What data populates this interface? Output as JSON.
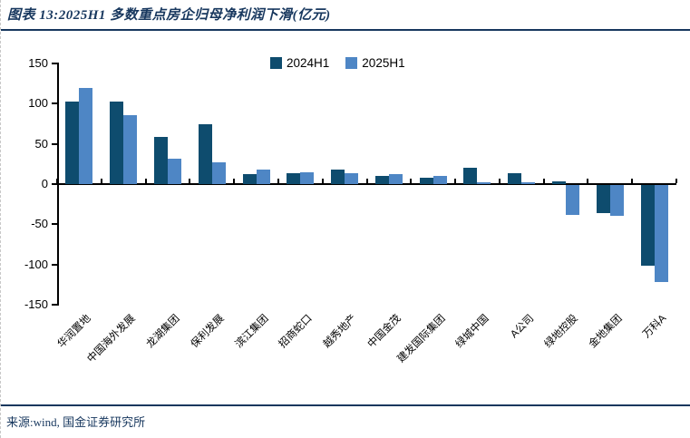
{
  "header": {
    "title": "图表 13:2025H1 多数重点房企归母净利润下滑(亿元)"
  },
  "footer": {
    "source": "来源:wind, 国金证券研究所"
  },
  "colors": {
    "series_2024": "#0e4c6e",
    "series_2025": "#4e86c5",
    "accent_navy": "#17375e",
    "axis_black": "#000000"
  },
  "chart_data": {
    "type": "bar",
    "title": "2025H1 多数重点房企归母净利润下滑(亿元)",
    "xlabel": "",
    "ylabel": "",
    "ylim": [
      -150,
      150
    ],
    "yticks": [
      150,
      100,
      50,
      0,
      -50,
      -100,
      -150
    ],
    "grid": false,
    "legend_position": "top-center",
    "categories": [
      "华润置地",
      "中国海外发展",
      "龙湖集团",
      "保利发展",
      "滨江集团",
      "招商蛇口",
      "越秀地产",
      "中国金茂",
      "建发国际集团",
      "绿城中国",
      "A公司",
      "绿地控股",
      "金地集团",
      "万科A"
    ],
    "series": [
      {
        "name": "2024H1",
        "values": [
          103,
          103,
          59,
          74,
          12,
          14,
          18,
          10,
          8,
          20,
          13,
          3,
          -35,
          -100
        ]
      },
      {
        "name": "2025H1",
        "values": [
          119,
          86,
          32,
          27,
          18,
          15,
          13,
          12,
          10,
          2,
          2,
          -37,
          -38,
          -121
        ]
      }
    ]
  }
}
